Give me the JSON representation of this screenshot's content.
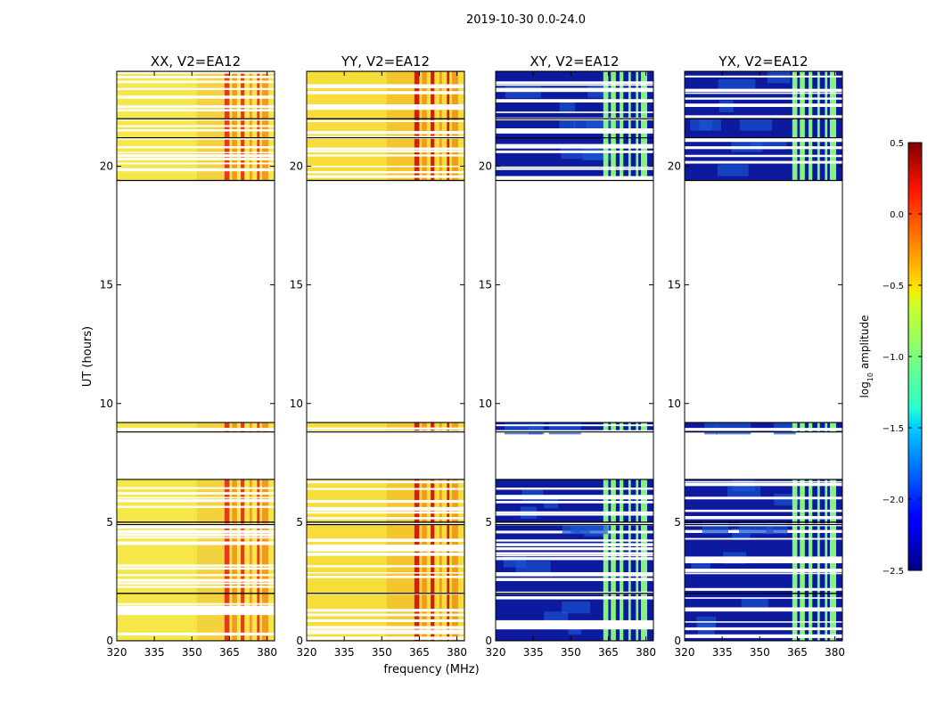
{
  "chart_data": {
    "type": "heatmap",
    "suptitle": "2019-10-30 0.0-24.0",
    "ylabel": "UT (hours)",
    "xlabel": "frequency (MHz)",
    "xlim": [
      320,
      383
    ],
    "ylim": [
      0,
      24
    ],
    "xticks": [
      320,
      335,
      350,
      365,
      380
    ],
    "yticks": [
      0,
      5,
      10,
      15,
      20
    ],
    "panels": [
      {
        "title": "XX, V2=EA12",
        "base": "#f5e74a",
        "rfi": "#e53b1d",
        "lowband": "#f0c030",
        "kind": "parallel"
      },
      {
        "title": "YY, V2=EA12",
        "base": "#f7dd3a",
        "rfi": "#d81a12",
        "lowband": "#f0b020",
        "kind": "parallel"
      },
      {
        "title": "XY, V2=EA12",
        "base": "#0d1a9e",
        "rfi": "#82f57a",
        "lowband": "#1a52d0",
        "kind": "cross"
      },
      {
        "title": "YX, V2=EA12",
        "base": "#0d1a9e",
        "rfi": "#82f57a",
        "lowband": "#1a52d0",
        "kind": "cross"
      }
    ],
    "data_blocks_hours": [
      [
        0,
        2.0
      ],
      [
        2.0,
        4.9
      ],
      [
        4.9,
        5.0
      ],
      [
        5.0,
        6.8
      ],
      [
        8.8,
        9.2
      ],
      [
        19.4,
        21.2
      ],
      [
        21.2,
        22.0
      ],
      [
        22.0,
        24.0
      ]
    ],
    "rfi_band_mhz": [
      [
        363,
        365
      ],
      [
        366,
        368
      ],
      [
        369.5,
        371
      ],
      [
        373,
        374
      ],
      [
        376,
        377
      ],
      [
        378,
        380.5
      ]
    ],
    "colorbar": {
      "label": "log10 amplitude",
      "label_main": "log",
      "label_sub": "10",
      "label_rest": " amplitude",
      "vmin": -2.5,
      "vmax": 0.5,
      "ticks": [
        0.5,
        0.0,
        -0.5,
        -1.0,
        -1.5,
        -2.0,
        -2.5
      ],
      "tick_labels": [
        "0.5",
        "0.0",
        "−0.5",
        "−1.0",
        "−1.5",
        "−2.0",
        "−2.5"
      ],
      "colormap": "jet"
    }
  }
}
